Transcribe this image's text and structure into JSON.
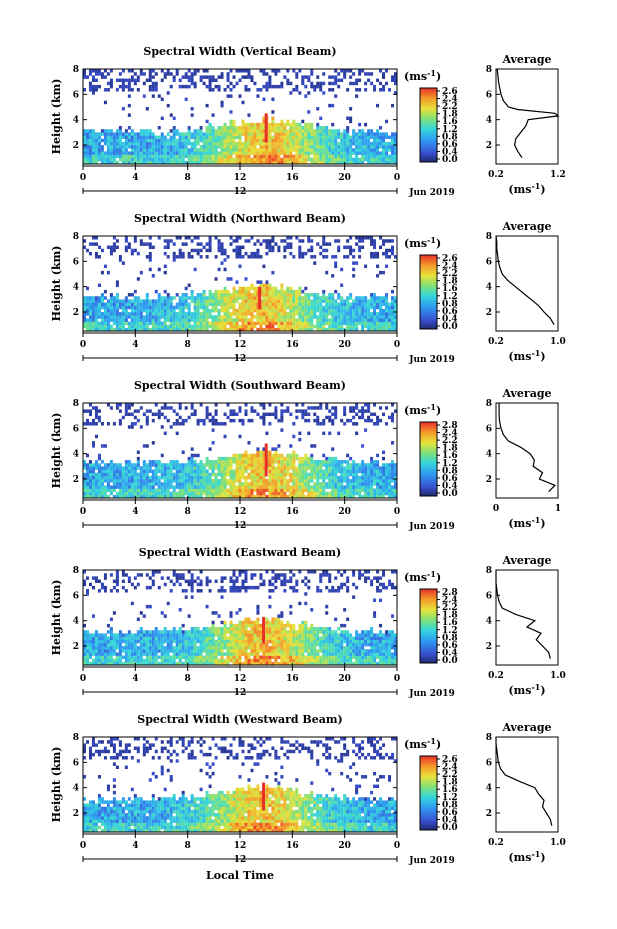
{
  "figure": {
    "xlabel": "Local Time",
    "ylabel": "Height (km)",
    "date_label": "Jun 2019",
    "day_label": "12",
    "unit_label": "(ms",
    "unit_sup": "-1",
    "unit_close": ")",
    "average_title": "Average"
  },
  "chart_data": [
    {
      "type": "heatmap",
      "title": "Spectral Width (Vertical Beam)",
      "x_ticks": [
        "0",
        "4",
        "8",
        "12",
        "16",
        "20",
        "0"
      ],
      "y_ticks": [
        "2",
        "4",
        "6",
        "8"
      ],
      "xlim": [
        0,
        24
      ],
      "ylim": [
        0.5,
        8
      ],
      "colorbar": {
        "range": [
          0,
          2.8
        ],
        "ticks": [
          "2.6",
          "2.4",
          "2.2",
          "1.8",
          "1.6",
          "1.2",
          "0.8",
          "0.6",
          "0.4",
          "0.0"
        ]
      },
      "features": {
        "low_band_top_km": 3.1,
        "convective_peak_hour": 14,
        "convective_peak_km": 4.5
      },
      "average": {
        "type": "line",
        "xlim": [
          0.2,
          1.2
        ],
        "x_ticks": [
          "0.2",
          "1.2"
        ],
        "ylim": [
          0.5,
          8
        ],
        "y_ticks": [
          "2",
          "4",
          "6",
          "8"
        ],
        "heights": [
          1.0,
          1.5,
          2.0,
          2.5,
          3.0,
          3.5,
          4.0,
          4.3,
          4.5,
          4.8,
          5.0,
          5.5,
          6.0,
          6.5,
          7.0,
          7.5,
          8.0
        ],
        "values": [
          0.62,
          0.55,
          0.5,
          0.52,
          0.6,
          0.68,
          0.72,
          1.2,
          1.15,
          0.55,
          0.4,
          0.32,
          0.28,
          0.26,
          0.24,
          0.23,
          0.22
        ]
      }
    },
    {
      "type": "heatmap",
      "title": "Spectral Width (Northward Beam)",
      "x_ticks": [
        "0",
        "4",
        "8",
        "12",
        "16",
        "20",
        "0"
      ],
      "y_ticks": [
        "2",
        "4",
        "6",
        "8"
      ],
      "xlim": [
        0,
        24
      ],
      "ylim": [
        0.5,
        8
      ],
      "colorbar": {
        "range": [
          0,
          2.8
        ],
        "ticks": [
          "2.6",
          "2.4",
          "2.2",
          "1.8",
          "1.6",
          "1.2",
          "0.8",
          "0.6",
          "0.4",
          "0.0"
        ]
      },
      "features": {
        "low_band_top_km": 3.2,
        "convective_peak_hour": 13.5,
        "convective_peak_km": 4.0
      },
      "average": {
        "type": "line",
        "xlim": [
          0.2,
          1.0
        ],
        "x_ticks": [
          "0.2",
          "1.0"
        ],
        "ylim": [
          0.5,
          8
        ],
        "y_ticks": [
          "2",
          "4",
          "6",
          "8"
        ],
        "heights": [
          1.0,
          1.5,
          2.0,
          2.5,
          3.0,
          3.5,
          4.0,
          4.5,
          5.0,
          5.5,
          6.0,
          6.5,
          7.0,
          7.5,
          8.0
        ],
        "values": [
          0.95,
          0.9,
          0.82,
          0.75,
          0.65,
          0.55,
          0.45,
          0.35,
          0.28,
          0.25,
          0.23,
          0.22,
          0.21,
          0.21,
          0.2
        ]
      }
    },
    {
      "type": "heatmap",
      "title": "Spectral Width (Southward Beam)",
      "x_ticks": [
        "0",
        "4",
        "8",
        "12",
        "16",
        "20",
        "0"
      ],
      "y_ticks": [
        "2",
        "4",
        "6",
        "8"
      ],
      "xlim": [
        0,
        24
      ],
      "ylim": [
        0.5,
        8
      ],
      "colorbar": {
        "range": [
          0,
          2.8
        ],
        "ticks": [
          "2.8",
          "2.4",
          "2.2",
          "1.8",
          "1.6",
          "1.2",
          "0.8",
          "0.6",
          "0.4",
          "0.0"
        ]
      },
      "features": {
        "low_band_top_km": 3.3,
        "convective_peak_hour": 14,
        "convective_peak_km": 4.8
      },
      "average": {
        "type": "line",
        "xlim": [
          0,
          1
        ],
        "x_ticks": [
          "0",
          "1"
        ],
        "ylim": [
          0.5,
          8
        ],
        "y_ticks": [
          "2",
          "4",
          "6",
          "8"
        ],
        "heights": [
          1.0,
          1.5,
          2.0,
          2.5,
          3.0,
          3.5,
          4.0,
          4.5,
          5.0,
          5.5,
          6.0,
          6.5,
          7.0,
          7.5,
          8.0
        ],
        "values": [
          0.85,
          0.95,
          0.7,
          0.75,
          0.6,
          0.62,
          0.55,
          0.4,
          0.2,
          0.12,
          0.08,
          0.06,
          0.05,
          0.05,
          0.05
        ]
      }
    },
    {
      "type": "heatmap",
      "title": "Spectral Width (Eastward Beam)",
      "x_ticks": [
        "0",
        "4",
        "8",
        "12",
        "16",
        "20",
        "0"
      ],
      "y_ticks": [
        "2",
        "4",
        "6",
        "8"
      ],
      "xlim": [
        0,
        24
      ],
      "ylim": [
        0.5,
        8
      ],
      "colorbar": {
        "range": [
          0,
          2.8
        ],
        "ticks": [
          "2.8",
          "2.4",
          "2.2",
          "1.8",
          "1.6",
          "1.2",
          "0.8",
          "0.6",
          "0.4",
          "0.0"
        ]
      },
      "features": {
        "low_band_top_km": 3.2,
        "convective_peak_hour": 13.8,
        "convective_peak_km": 4.3
      },
      "average": {
        "type": "line",
        "xlim": [
          0.2,
          1.0
        ],
        "x_ticks": [
          "0.2",
          "1.0"
        ],
        "ylim": [
          0.5,
          8
        ],
        "y_ticks": [
          "2",
          "4",
          "6",
          "8"
        ],
        "heights": [
          1.0,
          1.5,
          2.0,
          2.5,
          3.0,
          3.5,
          4.0,
          4.5,
          5.0,
          5.5,
          6.0,
          6.5,
          7.0,
          7.5,
          8.0
        ],
        "values": [
          0.9,
          0.88,
          0.8,
          0.72,
          0.78,
          0.6,
          0.7,
          0.45,
          0.28,
          0.24,
          0.22,
          0.21,
          0.2,
          0.2,
          0.2
        ]
      }
    },
    {
      "type": "heatmap",
      "title": "Spectral Width (Westward Beam)",
      "x_ticks": [
        "0",
        "4",
        "8",
        "12",
        "16",
        "20",
        "0"
      ],
      "y_ticks": [
        "2",
        "4",
        "6",
        "8"
      ],
      "xlim": [
        0,
        24
      ],
      "ylim": [
        0.5,
        8
      ],
      "colorbar": {
        "range": [
          0,
          2.8
        ],
        "ticks": [
          "2.6",
          "2.4",
          "2.2",
          "1.8",
          "1.6",
          "1.2",
          "0.8",
          "0.6",
          "0.4",
          "0.0"
        ]
      },
      "features": {
        "low_band_top_km": 3.1,
        "convective_peak_hour": 13.8,
        "convective_peak_km": 4.4
      },
      "average": {
        "type": "line",
        "xlim": [
          0.2,
          1.0
        ],
        "x_ticks": [
          "0.2",
          "1.0"
        ],
        "ylim": [
          0.5,
          8
        ],
        "y_ticks": [
          "2",
          "4",
          "6",
          "8"
        ],
        "heights": [
          1.0,
          1.5,
          2.0,
          2.5,
          3.0,
          3.5,
          4.0,
          4.5,
          5.0,
          5.5,
          6.0,
          6.5,
          7.0,
          7.5,
          8.0
        ],
        "values": [
          0.92,
          0.9,
          0.85,
          0.8,
          0.82,
          0.75,
          0.7,
          0.5,
          0.32,
          0.26,
          0.23,
          0.22,
          0.21,
          0.2,
          0.2
        ]
      }
    }
  ]
}
